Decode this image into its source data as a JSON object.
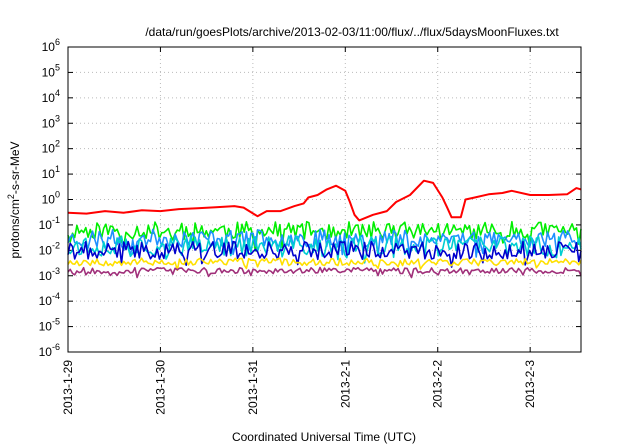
{
  "chart_data": {
    "type": "line",
    "title": "/data/run/goesPlots/archive/2013-02-03/11:00/flux/../flux/5daysMoonFluxes.txt",
    "xlabel": "Coordinated Universal Time (UTC)",
    "ylabel_parts": {
      "main": "protons/cm",
      "sup": "2",
      "rest": "-s-sr-MeV"
    },
    "y_scale": "log",
    "ylim": [
      1e-06,
      1000000.0
    ],
    "y_ticks": [
      {
        "exp": -6,
        "base": "10",
        "sup": "-6"
      },
      {
        "exp": -5,
        "base": "10",
        "sup": "-5"
      },
      {
        "exp": -4,
        "base": "10",
        "sup": "-4"
      },
      {
        "exp": -3,
        "base": "10",
        "sup": "-3"
      },
      {
        "exp": -2,
        "base": "10",
        "sup": "-2"
      },
      {
        "exp": -1,
        "base": "10",
        "sup": "-1"
      },
      {
        "exp": 0,
        "base": "10",
        "sup": "0"
      },
      {
        "exp": 1,
        "base": "10",
        "sup": "1"
      },
      {
        "exp": 2,
        "base": "10",
        "sup": "2"
      },
      {
        "exp": 3,
        "base": "10",
        "sup": "3"
      },
      {
        "exp": 4,
        "base": "10",
        "sup": "4"
      },
      {
        "exp": 5,
        "base": "10",
        "sup": "5"
      },
      {
        "exp": 6,
        "base": "10",
        "sup": "6"
      }
    ],
    "x_range_days": [
      0,
      5.55
    ],
    "x_ticks": [
      {
        "day": 0,
        "label": "2013-1-29"
      },
      {
        "day": 1,
        "label": "2013-1-30"
      },
      {
        "day": 2,
        "label": "2013-1-31"
      },
      {
        "day": 3,
        "label": "2013-2-1"
      },
      {
        "day": 4,
        "label": "2013-2-2"
      },
      {
        "day": 5,
        "label": "2013-2-3"
      }
    ],
    "grid": true,
    "series": [
      {
        "color": "#ff0000",
        "points": [
          [
            0,
            0.3
          ],
          [
            0.2,
            0.28
          ],
          [
            0.4,
            0.35
          ],
          [
            0.6,
            0.3
          ],
          [
            0.8,
            0.38
          ],
          [
            1.0,
            0.35
          ],
          [
            1.2,
            0.42
          ],
          [
            1.4,
            0.45
          ],
          [
            1.6,
            0.5
          ],
          [
            1.8,
            0.55
          ],
          [
            1.9,
            0.48
          ],
          [
            2.05,
            0.22
          ],
          [
            2.15,
            0.35
          ],
          [
            2.3,
            0.35
          ],
          [
            2.45,
            0.55
          ],
          [
            2.55,
            0.7
          ],
          [
            2.6,
            1.2
          ],
          [
            2.7,
            1.5
          ],
          [
            2.8,
            2.5
          ],
          [
            2.9,
            3.5
          ],
          [
            3.0,
            2.2
          ],
          [
            3.05,
            0.8
          ],
          [
            3.1,
            0.25
          ],
          [
            3.15,
            0.15
          ],
          [
            3.3,
            0.25
          ],
          [
            3.45,
            0.35
          ],
          [
            3.55,
            0.8
          ],
          [
            3.7,
            1.5
          ],
          [
            3.85,
            5.5
          ],
          [
            3.95,
            4.5
          ],
          [
            4.05,
            1.2
          ],
          [
            4.1,
            0.5
          ],
          [
            4.15,
            0.2
          ],
          [
            4.25,
            0.2
          ],
          [
            4.3,
            1.0
          ],
          [
            4.4,
            1.2
          ],
          [
            4.55,
            1.6
          ],
          [
            4.7,
            1.8
          ],
          [
            4.8,
            2.2
          ],
          [
            5.0,
            1.5
          ],
          [
            5.2,
            1.5
          ],
          [
            5.4,
            1.6
          ],
          [
            5.5,
            2.8
          ],
          [
            5.55,
            2.5
          ]
        ]
      },
      {
        "color": "#00ee00",
        "mean": 0.06,
        "spread": 0.35,
        "seed": 11
      },
      {
        "color": "#1e90ff",
        "mean": 0.03,
        "spread": 0.35,
        "seed": 23
      },
      {
        "color": "#00ced1",
        "mean": 0.015,
        "spread": 0.4,
        "seed": 37
      },
      {
        "color": "#0000cd",
        "mean": 0.01,
        "spread": 0.35,
        "seed": 41
      },
      {
        "color": "#ffe000",
        "mean": 0.0035,
        "spread": 0.15,
        "seed": 53
      },
      {
        "color": "#a0307a",
        "mean": 0.0016,
        "spread": 0.12,
        "seed": 67
      }
    ]
  }
}
